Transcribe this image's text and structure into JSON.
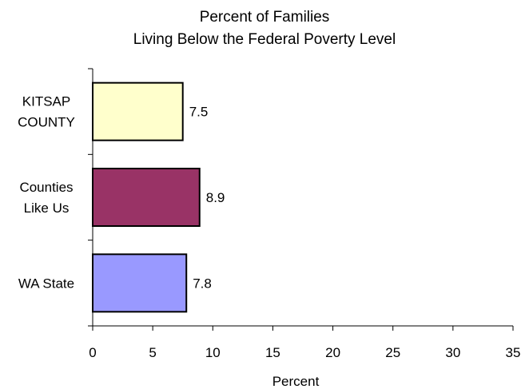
{
  "chart_data": {
    "type": "bar",
    "orientation": "horizontal",
    "title": "Percent of Families",
    "subtitle": "Living Below the Federal Poverty Level",
    "xlabel": "Percent",
    "ylabel": "",
    "categories": [
      {
        "label_lines": [
          "KITSAP",
          "COUNTY"
        ],
        "value": 7.5,
        "color": "#FFFFCC",
        "value_label": "7.5"
      },
      {
        "label_lines": [
          "Counties",
          "Like Us"
        ],
        "value": 8.9,
        "color": "#993366",
        "value_label": "8.9"
      },
      {
        "label_lines": [
          "WA State"
        ],
        "value": 7.8,
        "color": "#9999FF",
        "value_label": "7.8"
      }
    ],
    "xlim": [
      0,
      35
    ],
    "xticks": [
      "0",
      "5",
      "10",
      "15",
      "20",
      "25",
      "30",
      "35"
    ],
    "grid": false,
    "legend": "none"
  }
}
